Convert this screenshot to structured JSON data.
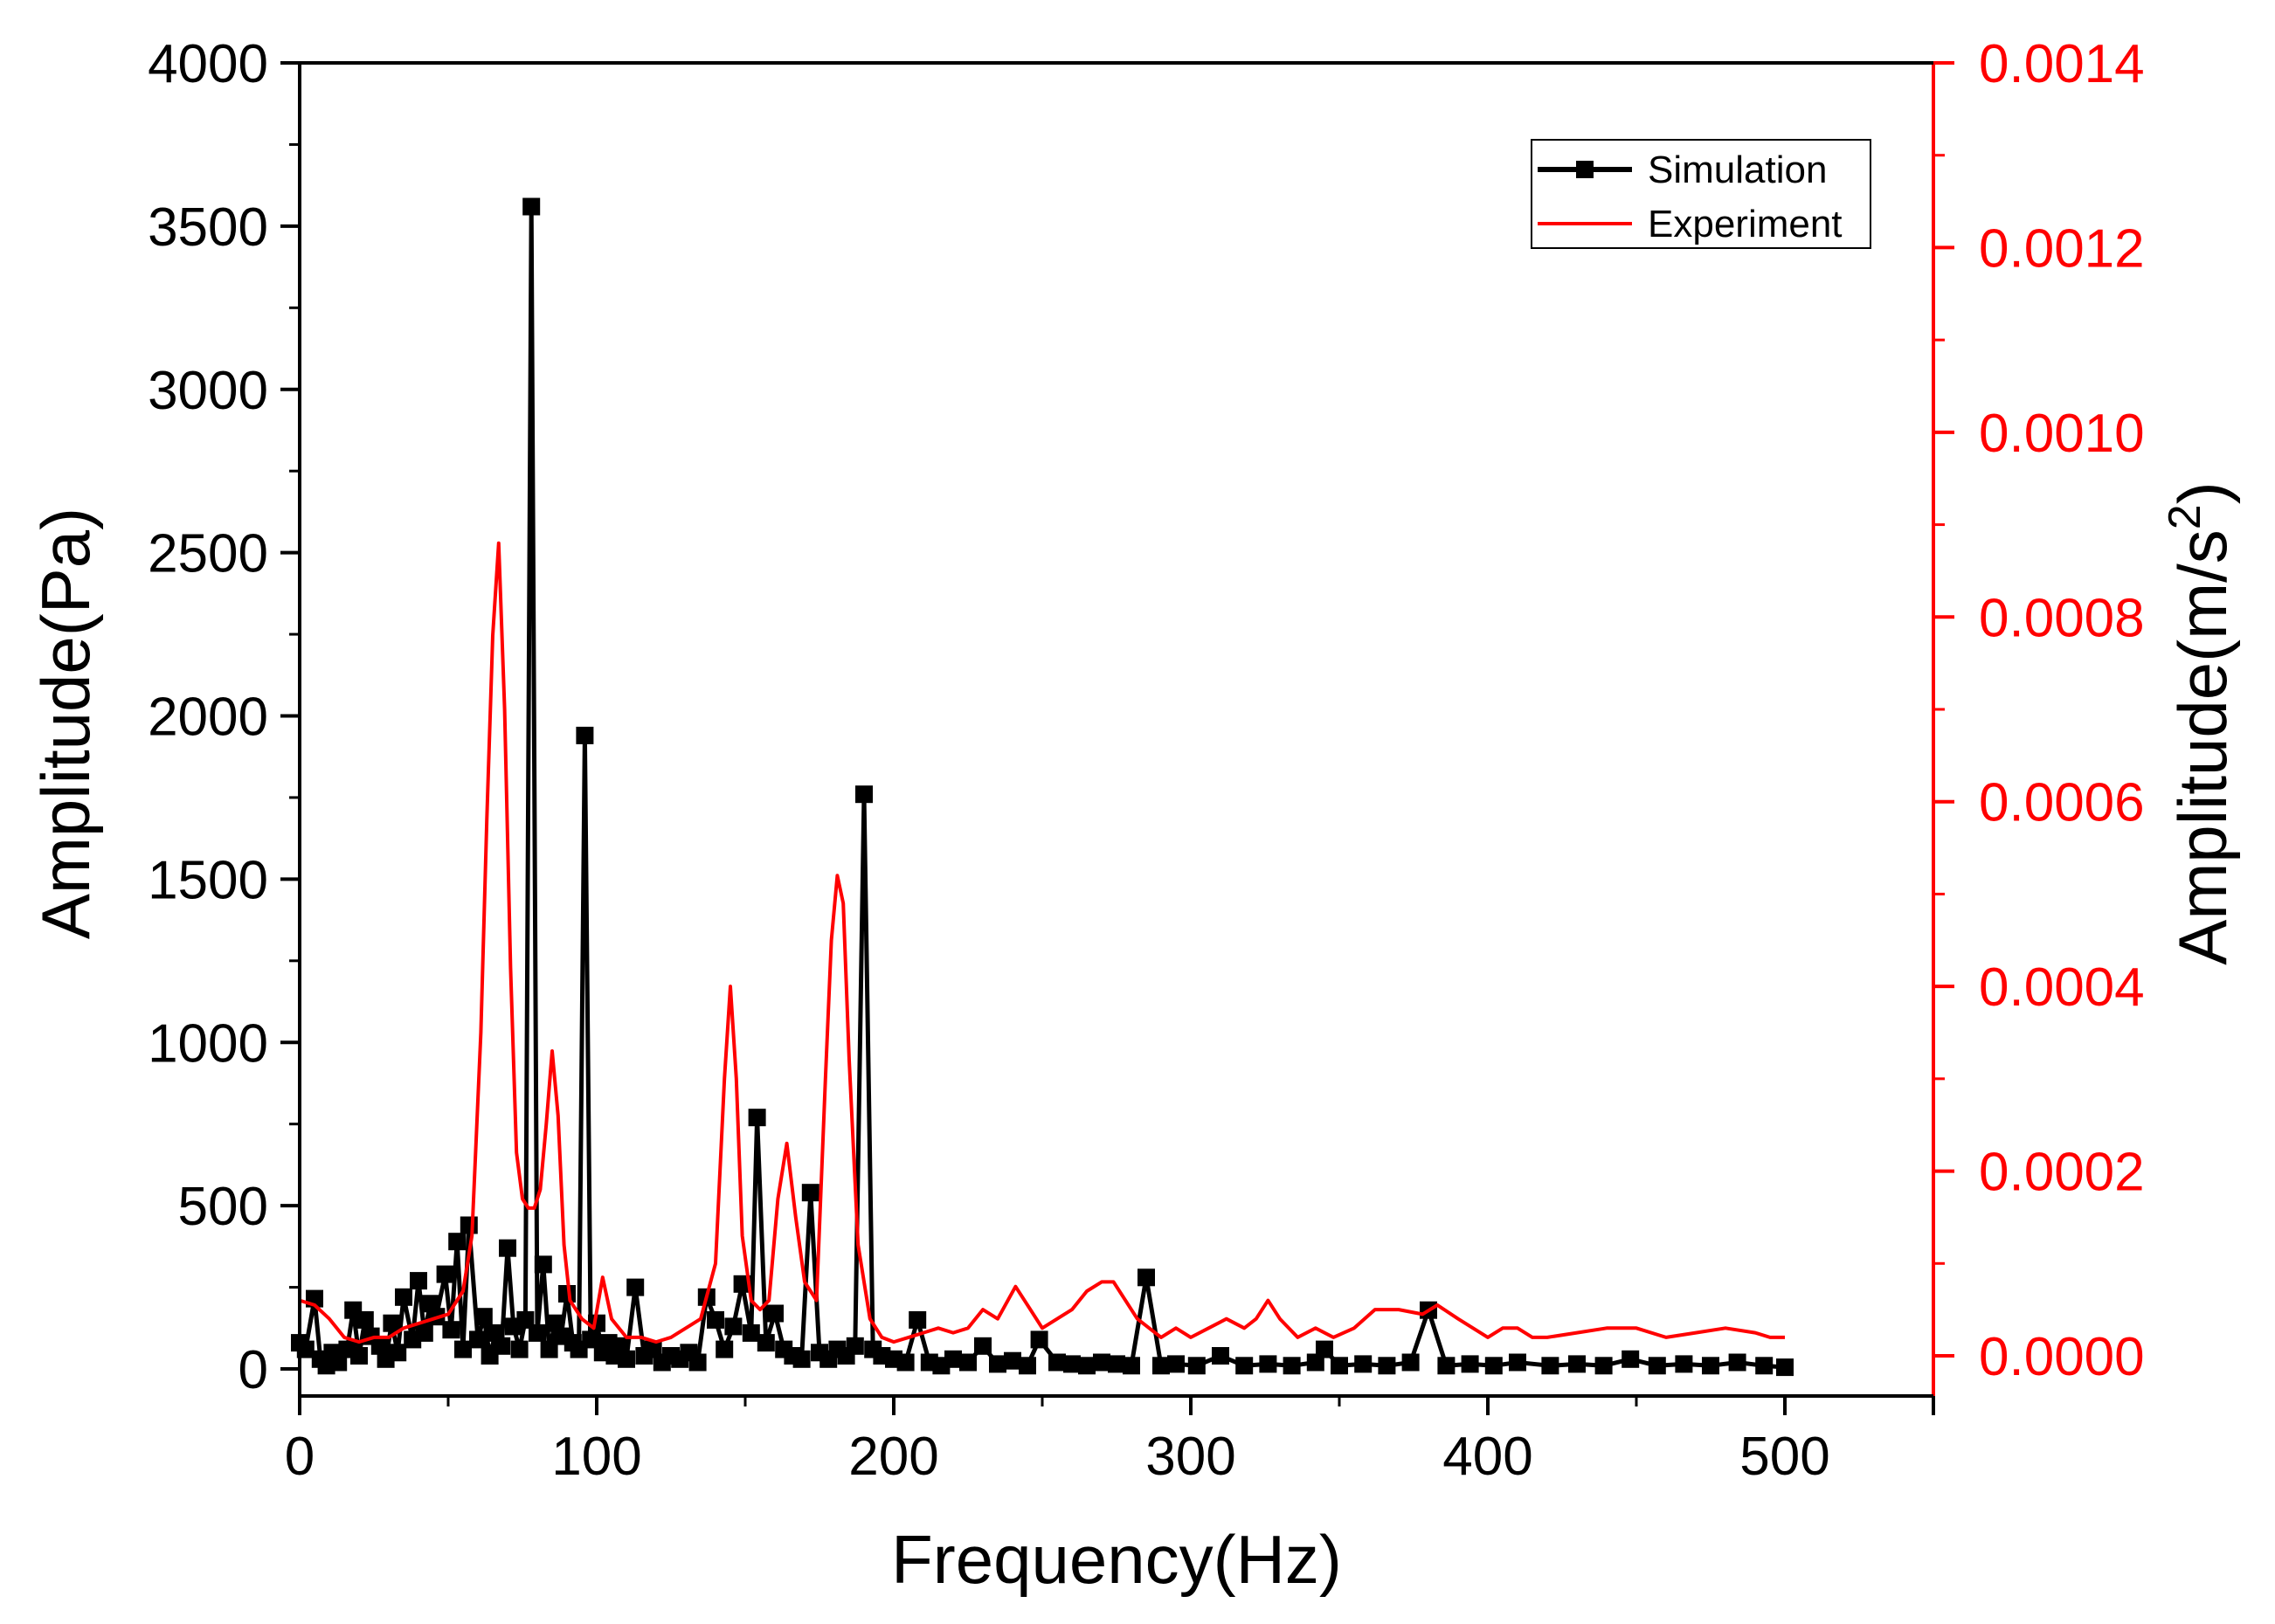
{
  "chart_data": {
    "type": "line",
    "title": "",
    "xlabel": "Frequency(Hz)",
    "ylabel": "Amplitude(Pa)",
    "y2label": "Amplitude(m/s",
    "y2label_sup": "2",
    "y2label_close": ")",
    "xlim": [
      0,
      550
    ],
    "ylim": [
      0,
      4000
    ],
    "y2lim": [
      0,
      0.0014
    ],
    "xticks": [
      0,
      100,
      200,
      300,
      400,
      500
    ],
    "xtick_labels": [
      "0",
      "100",
      "200",
      "300",
      "400",
      "500"
    ],
    "yticks": [
      0,
      500,
      1000,
      1500,
      2000,
      2500,
      3000,
      3500,
      4000
    ],
    "ytick_labels": [
      "0",
      "500",
      "1000",
      "1500",
      "2000",
      "2500",
      "3000",
      "3500",
      "4000"
    ],
    "y2ticks": [
      0,
      0.0002,
      0.0004,
      0.0006,
      0.0008,
      0.001,
      0.0012,
      0.0014
    ],
    "y2tick_labels": [
      "0.0000",
      "0.0002",
      "0.0004",
      "0.0006",
      "0.0008",
      "0.0010",
      "0.0012",
      "0.0014"
    ],
    "legend_position": "top-right",
    "series": [
      {
        "name": "Simulation",
        "axis": "left",
        "color": "#000000",
        "marker": "square",
        "x": [
          0,
          2,
          5,
          7,
          9,
          11,
          13,
          16,
          18,
          20,
          22,
          24,
          27,
          29,
          31,
          33,
          35,
          38,
          40,
          42,
          44,
          46,
          49,
          51,
          53,
          55,
          57,
          60,
          62,
          64,
          66,
          68,
          70,
          72,
          74,
          76,
          78,
          80,
          82,
          84,
          86,
          88,
          90,
          92,
          94,
          96,
          98,
          100,
          102,
          104,
          106,
          108,
          110,
          113,
          116,
          119,
          122,
          125,
          128,
          131,
          134,
          137,
          140,
          143,
          146,
          149,
          152,
          154,
          157,
          160,
          163,
          166,
          169,
          172,
          175,
          178,
          181,
          184,
          187,
          190,
          193,
          196,
          200,
          204,
          208,
          212,
          216,
          220,
          225,
          230,
          235,
          240,
          245,
          249,
          255,
          260,
          265,
          270,
          275,
          280,
          285,
          290,
          295,
          302,
          310,
          318,
          326,
          334,
          342,
          345,
          350,
          358,
          366,
          374,
          380,
          386,
          394,
          402,
          410,
          421,
          430,
          439,
          448,
          457,
          466,
          475,
          484,
          493,
          500
        ],
        "y": [
          80,
          60,
          215,
          30,
          10,
          50,
          20,
          60,
          180,
          40,
          150,
          100,
          70,
          30,
          140,
          50,
          220,
          90,
          270,
          110,
          200,
          160,
          290,
          120,
          390,
          60,
          440,
          90,
          160,
          40,
          110,
          70,
          370,
          130,
          60,
          150,
          3560,
          110,
          320,
          60,
          140,
          100,
          230,
          80,
          60,
          1940,
          90,
          140,
          50,
          80,
          40,
          70,
          30,
          250,
          40,
          60,
          20,
          40,
          30,
          50,
          20,
          220,
          150,
          60,
          130,
          260,
          110,
          770,
          80,
          170,
          60,
          40,
          30,
          540,
          50,
          30,
          60,
          40,
          70,
          1760,
          60,
          40,
          30,
          20,
          150,
          20,
          10,
          30,
          20,
          70,
          15,
          25,
          10,
          90,
          20,
          15,
          10,
          20,
          15,
          10,
          280,
          10,
          15,
          10,
          40,
          10,
          15,
          10,
          20,
          60,
          10,
          15,
          10,
          20,
          180,
          10,
          15,
          10,
          20,
          10,
          15,
          10,
          30,
          10,
          15,
          10,
          20,
          10,
          5
        ]
      },
      {
        "name": "Experiment",
        "axis": "right",
        "color": "#ff0000",
        "marker": "none",
        "x": [
          0,
          5,
          10,
          15,
          20,
          25,
          30,
          35,
          40,
          45,
          50,
          55,
          58,
          61,
          63,
          65,
          67,
          69,
          71,
          73,
          75,
          77,
          79,
          81,
          83,
          85,
          87,
          89,
          91,
          95,
          99,
          102,
          105,
          110,
          115,
          120,
          125,
          130,
          135,
          140,
          143,
          145,
          147,
          149,
          152,
          155,
          158,
          161,
          164,
          167,
          170,
          174,
          177,
          179,
          181,
          183,
          185,
          188,
          192,
          196,
          200,
          205,
          210,
          215,
          220,
          225,
          230,
          235,
          241,
          246,
          250,
          255,
          260,
          265,
          270,
          274,
          278,
          282,
          286,
          290,
          295,
          300,
          306,
          312,
          318,
          322,
          326,
          330,
          336,
          342,
          348,
          355,
          362,
          370,
          378,
          383,
          390,
          400,
          405,
          410,
          415,
          420,
          430,
          440,
          450,
          460,
          470,
          480,
          490,
          495,
          500
        ],
        "y": [
          6e-05,
          5.5e-05,
          4e-05,
          2e-05,
          1.5e-05,
          2e-05,
          2e-05,
          3e-05,
          3.5e-05,
          4e-05,
          4.5e-05,
          7e-05,
          0.00013,
          0.00035,
          0.00058,
          0.00078,
          0.00088,
          0.0007,
          0.00042,
          0.00022,
          0.00017,
          0.00016,
          0.00016,
          0.00018,
          0.00025,
          0.00033,
          0.00026,
          0.00012,
          6e-05,
          4e-05,
          3e-05,
          8.5e-05,
          4e-05,
          2e-05,
          2e-05,
          1.5e-05,
          2e-05,
          3e-05,
          4e-05,
          0.0001,
          0.0003,
          0.0004,
          0.0003,
          0.00013,
          6e-05,
          5e-05,
          6e-05,
          0.00017,
          0.00023,
          0.00015,
          8e-05,
          6e-05,
          0.0003,
          0.00045,
          0.00052,
          0.00049,
          0.00032,
          0.00012,
          4e-05,
          2e-05,
          1.5e-05,
          2e-05,
          2.5e-05,
          3e-05,
          2.5e-05,
          3e-05,
          5e-05,
          4e-05,
          7.5e-05,
          5e-05,
          3e-05,
          4e-05,
          5e-05,
          7e-05,
          8e-05,
          8e-05,
          6e-05,
          4e-05,
          3e-05,
          2e-05,
          3e-05,
          2e-05,
          3e-05,
          4e-05,
          3e-05,
          4e-05,
          6e-05,
          4e-05,
          2e-05,
          3e-05,
          2e-05,
          3e-05,
          5e-05,
          5e-05,
          4.5e-05,
          5.5e-05,
          4e-05,
          2e-05,
          3e-05,
          3e-05,
          2e-05,
          2e-05,
          2.5e-05,
          3e-05,
          3e-05,
          2e-05,
          2.5e-05,
          3e-05,
          2.5e-05,
          2e-05,
          2e-05
        ]
      }
    ]
  }
}
